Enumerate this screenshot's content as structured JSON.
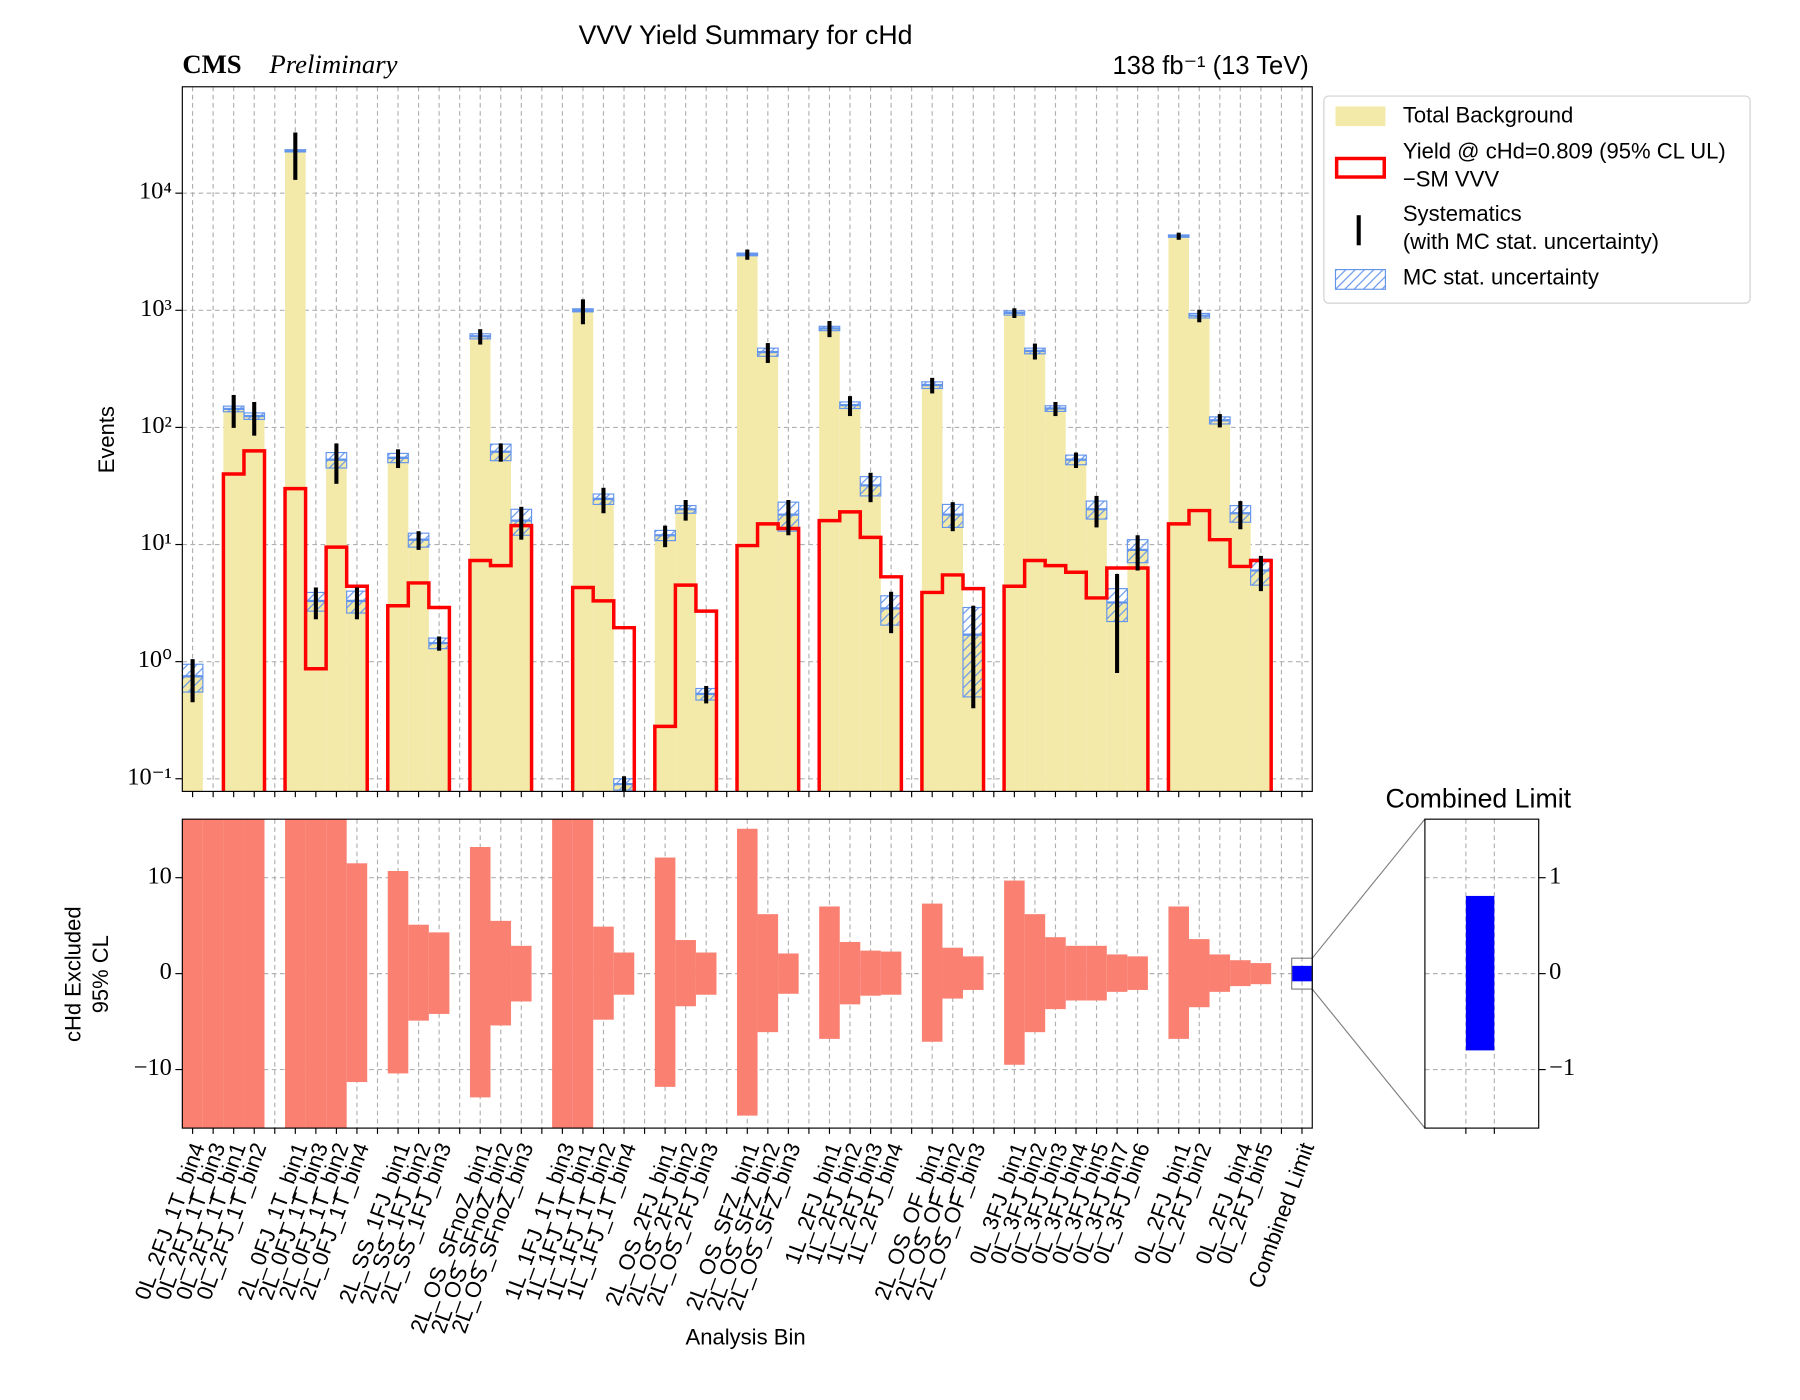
{
  "chart_data": [
    {
      "type": "step",
      "title": "VVV Yield Summary for cHd",
      "experiment": "CMS",
      "status": "Preliminary",
      "lumi": "138 fb⁻¹ (13 TeV)",
      "y_label": "Events",
      "log": true,
      "grid": true,
      "ylim": [
        0.078,
        81000
      ],
      "yticks": [
        {
          "value": 0.1,
          "label": "10⁻¹"
        },
        {
          "value": 1,
          "label": "10⁰"
        },
        {
          "value": 10,
          "label": "10¹"
        },
        {
          "value": 100,
          "label": "10²"
        },
        {
          "value": 1000,
          "label": "10³"
        },
        {
          "value": 10000,
          "label": "10⁴"
        }
      ],
      "series": [
        {
          "name": "Total Background",
          "color": "#f3e9a8",
          "values": [
            0.75,
            null,
            144,
            125,
            null,
            23000,
            3.3,
            53,
            3.3,
            null,
            55,
            11,
            1.44,
            null,
            600,
            62,
            16,
            null,
            null,
            1000,
            24.5,
            0.09,
            null,
            12,
            20,
            0.53,
            null,
            3000,
            440,
            18,
            null,
            700,
            155,
            32,
            2.85,
            null,
            230,
            18,
            1.7,
            null,
            950,
            450,
            145,
            53,
            20,
            3.2,
            9,
            null,
            4300,
            900,
            115,
            18.5,
            6.0,
            null,
            null
          ]
        },
        {
          "name": "Yield @ cHd=0.809 (95% CL UL)\n−SM VVV",
          "color": "#ff0000",
          "values": [
            null,
            null,
            40,
            63,
            null,
            30,
            0.87,
            9.5,
            4.4,
            null,
            3.0,
            4.7,
            2.9,
            null,
            7.3,
            6.6,
            14.5,
            null,
            null,
            4.3,
            3.3,
            1.95,
            null,
            0.28,
            4.5,
            2.7,
            null,
            9.8,
            15,
            13.7,
            null,
            16,
            19,
            11.5,
            5.3,
            null,
            3.9,
            5.5,
            4.2,
            null,
            4.4,
            7.3,
            6.6,
            5.8,
            3.5,
            6.3,
            6.3,
            null,
            15,
            19.5,
            11,
            6.5,
            7.3,
            null,
            null
          ]
        },
        {
          "name": "Systematics\n(with MC stat. uncertainty)",
          "color": "#000000",
          "values": [
            0.3,
            null,
            45,
            40,
            null,
            10000,
            1.0,
            20,
            1.0,
            null,
            10,
            2,
            0.2,
            null,
            90,
            11,
            5,
            null,
            null,
            240,
            6,
            0.015,
            null,
            2.5,
            4,
            0.09,
            null,
            300,
            85,
            6,
            null,
            110,
            30,
            9,
            1.1,
            null,
            35,
            5,
            1.3,
            null,
            90,
            70,
            20,
            8,
            6,
            2.4,
            3,
            null,
            300,
            110,
            15,
            5,
            2,
            null,
            null
          ]
        },
        {
          "name": "MC stat. uncertainty",
          "color": "#6495ed",
          "values": [
            0.2,
            null,
            8,
            8,
            null,
            500,
            0.6,
            8,
            0.7,
            null,
            5,
            1.5,
            0.15,
            null,
            30,
            10,
            4,
            null,
            null,
            30,
            2.5,
            0.01,
            null,
            1.2,
            1.5,
            0.06,
            null,
            80,
            35,
            5,
            null,
            30,
            10,
            6,
            0.8,
            null,
            15,
            4,
            1.2,
            null,
            40,
            25,
            8,
            5,
            3.5,
            1.0,
            2,
            null,
            100,
            40,
            8,
            3,
            1.5,
            null,
            null
          ]
        }
      ]
    },
    {
      "type": "range_bar",
      "x_label": "Analysis Bin",
      "y_label": "cHd Excluded\n95% CL",
      "grid": true,
      "ylim": [
        -16.1,
        16.1
      ],
      "yticks": [
        {
          "value": -10,
          "label": "−10"
        },
        0,
        10
      ],
      "categories": [
        "0L_2FJ_1T_bin4",
        "0L_2FJ_1T_bin3",
        "0L_2FJ_1T_bin1",
        "0L_2FJ_1T_bin2",
        null,
        "2L_0FJ_1T_bin1",
        "2L_0FJ_1T_bin3",
        "2L_0FJ_1T_bin2",
        "2L_0FJ_1T_bin4",
        null,
        "2L_SS_1FJ_bin1",
        "2L_SS_1FJ_bin2",
        "2L_SS_1FJ_bin3",
        null,
        "2L_OS_SFnoZ_bin1",
        "2L_OS_SFnoZ_bin2",
        "2L_OS_SFnoZ_bin3",
        null,
        "1L_1FJ_1T_bin3",
        "1L_1FJ_1T_bin1",
        "1L_1FJ_1T_bin2",
        "1L_1FJ_1T_bin4",
        null,
        "2L_OS_2FJ_bin1",
        "2L_OS_2FJ_bin2",
        "2L_OS_2FJ_bin3",
        null,
        "2L_OS_SFZ_bin1",
        "2L_OS_SFZ_bin2",
        "2L_OS_SFZ_bin3",
        null,
        "1L_2FJ_bin1",
        "1L_2FJ_bin2",
        "1L_2FJ_bin3",
        "1L_2FJ_bin4",
        null,
        "2L_OS_OF_bin1",
        "2L_OS_OF_bin2",
        "2L_OS_OF_bin3",
        null,
        "0L_3FJ_bin1",
        "0L_3FJ_bin2",
        "0L_3FJ_bin3",
        "0L_3FJ_bin4",
        "0L_3FJ_bin5",
        "0L_3FJ_bin7",
        "0L_3FJ_bin6",
        null,
        "0L_2FJ_bin1",
        "0L_2FJ_bin2",
        null,
        "0L_2FJ_bin4",
        "0L_2FJ_bin5",
        null,
        "Combined Limit"
      ],
      "series": [
        {
          "color": "#fa8072",
          "high": [
            50,
            50,
            50,
            50,
            null,
            50,
            50,
            50,
            11.5,
            null,
            10.7,
            5.1,
            4.3,
            null,
            13.2,
            5.5,
            2.9,
            null,
            50,
            50,
            4.9,
            2.2,
            null,
            12.1,
            3.5,
            2.2,
            null,
            15.1,
            6.2,
            2.1,
            null,
            7.0,
            3.3,
            2.4,
            2.3,
            null,
            7.3,
            2.7,
            1.8,
            null,
            9.7,
            6.2,
            3.8,
            2.9,
            2.9,
            2.0,
            1.8,
            null,
            7.0,
            3.6,
            2.0,
            1.4,
            1.1,
            null,
            null
          ],
          "low": [
            -50,
            -50,
            -50,
            -50,
            null,
            -50,
            -50,
            -50,
            -11.3,
            null,
            -10.4,
            -4.9,
            -4.2,
            null,
            -12.9,
            -5.4,
            -2.9,
            null,
            -50,
            -50,
            -4.8,
            -2.2,
            null,
            -11.8,
            -3.4,
            -2.2,
            null,
            -14.8,
            -6.1,
            -2.1,
            null,
            -6.8,
            -3.2,
            -2.3,
            -2.2,
            null,
            -7.1,
            -2.6,
            -1.7,
            null,
            -9.5,
            -6.1,
            -3.7,
            -2.8,
            -2.8,
            -1.9,
            -1.7,
            null,
            -6.8,
            -3.5,
            -1.9,
            -1.3,
            -1.1,
            null,
            null
          ]
        }
      ],
      "combined": {
        "color": "#0000ff",
        "high": 0.81,
        "low": -0.8
      }
    },
    {
      "type": "range_bar",
      "title": "Combined Limit",
      "grid": true,
      "color": "#0000ff",
      "ylim": [
        -1.61,
        1.61
      ],
      "yticks": [
        {
          "value": -1,
          "label": "−1"
        },
        0,
        1
      ],
      "high": [
        0.81
      ],
      "low": [
        -0.8
      ]
    }
  ]
}
